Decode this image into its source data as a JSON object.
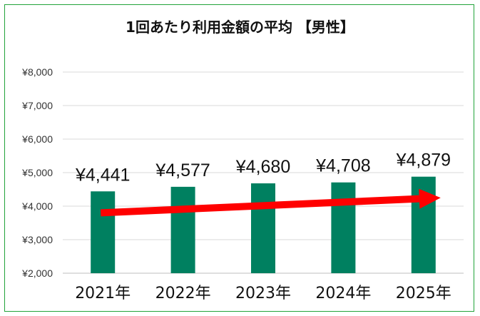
{
  "chart_data": {
    "type": "bar",
    "title": "1回あたり利用金額の平均 【男性】",
    "categories": [
      "2021年",
      "2022年",
      "2023年",
      "2024年",
      "2025年"
    ],
    "values": [
      4441,
      4577,
      4680,
      4708,
      4879
    ],
    "data_labels": [
      "¥4,441",
      "¥4,577",
      "¥4,680",
      "¥4,708",
      "¥4,879"
    ],
    "ylim": [
      2000,
      8000
    ],
    "y_ticks": [
      2000,
      3000,
      4000,
      5000,
      6000,
      7000,
      8000
    ],
    "y_tick_labels": [
      "¥2,000",
      "¥3,000",
      "¥4,000",
      "¥5,000",
      "¥6,000",
      "¥7,000",
      "¥8,000"
    ],
    "xlabel": "",
    "ylabel": "",
    "grid": true,
    "legend": "none",
    "trend_arrow": {
      "from_value": 3800,
      "to_value": 4250,
      "direction": "up"
    },
    "colors": {
      "bar": "#008060",
      "arrow": "#ff0000",
      "frame": "#22a33a",
      "grid": "#d9d9d9"
    }
  }
}
